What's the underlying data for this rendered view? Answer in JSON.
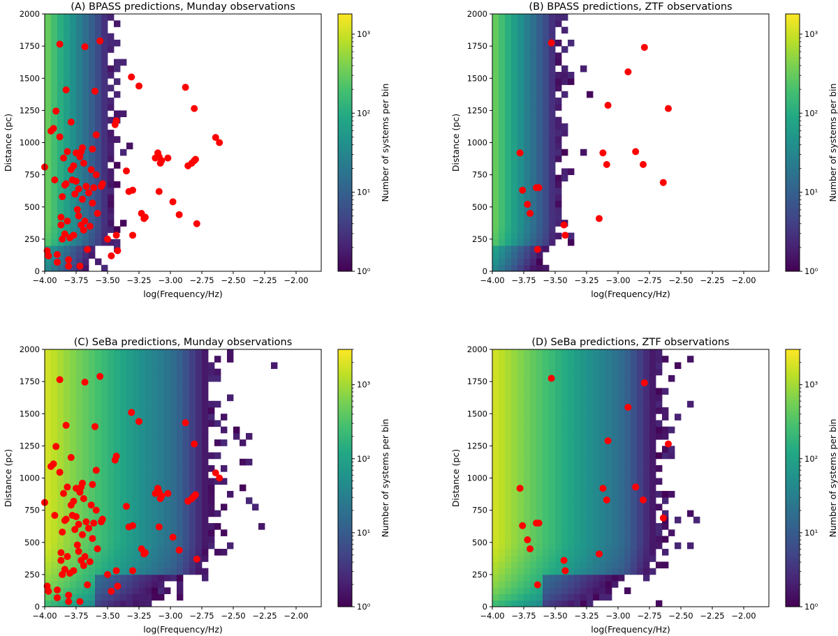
{
  "figure": {
    "colorbar_label": "Number of systems per bin",
    "xlabel": "log(Frequency/Hz)",
    "ylabel": "Distance (pc)"
  },
  "colors": {
    "observed_marker": "#ff0000",
    "viridis": [
      "#440154",
      "#482475",
      "#414487",
      "#355f8d",
      "#2a788e",
      "#21918c",
      "#22a884",
      "#44bf70",
      "#7ad151",
      "#bddf26",
      "#fde725"
    ]
  },
  "chart_data": [
    {
      "type": "heatmap",
      "title": "(A) BPASS predictions, Munday observations",
      "xlabel": "log(Frequency/Hz)",
      "ylabel": "Distance (pc)",
      "xlim": [
        -4.0,
        -1.8
      ],
      "ylim": [
        0,
        2000
      ],
      "xticks": [
        "-4.00",
        "-3.75",
        "-3.50",
        "-3.25",
        "-3.00",
        "-2.75",
        "-2.50",
        "-2.25",
        "-2.00"
      ],
      "yticks": [
        "0",
        "250",
        "500",
        "750",
        "1000",
        "1250",
        "1500",
        "1750",
        "2000"
      ],
      "colorbar": {
        "label": "Number of systems per bin",
        "scale": "log",
        "range": [
          1,
          1800
        ],
        "ticks": [
          "10⁰",
          "10¹",
          "10²",
          "10³"
        ]
      },
      "population_model": "BPASS",
      "observations": "Munday",
      "points": [
        [
          -4.0,
          810
        ],
        [
          -3.98,
          160
        ],
        [
          -3.97,
          120
        ],
        [
          -3.95,
          1090
        ],
        [
          -3.93,
          1110
        ],
        [
          -3.92,
          710
        ],
        [
          -3.91,
          1245
        ],
        [
          -3.9,
          130
        ],
        [
          -3.9,
          70
        ],
        [
          -3.88,
          1765
        ],
        [
          -3.88,
          1045
        ],
        [
          -3.87,
          420
        ],
        [
          -3.87,
          360
        ],
        [
          -3.86,
          580
        ],
        [
          -3.86,
          250
        ],
        [
          -3.85,
          880
        ],
        [
          -3.84,
          670
        ],
        [
          -3.84,
          290
        ],
        [
          -3.83,
          1410
        ],
        [
          -3.83,
          680
        ],
        [
          -3.82,
          930
        ],
        [
          -3.82,
          390
        ],
        [
          -3.81,
          90
        ],
        [
          -3.81,
          40
        ],
        [
          -3.8,
          260
        ],
        [
          -3.79,
          1160
        ],
        [
          -3.79,
          790
        ],
        [
          -3.78,
          710
        ],
        [
          -3.77,
          820
        ],
        [
          -3.77,
          280
        ],
        [
          -3.76,
          600
        ],
        [
          -3.75,
          920
        ],
        [
          -3.75,
          700
        ],
        [
          -3.74,
          480
        ],
        [
          -3.73,
          640
        ],
        [
          -3.73,
          430
        ],
        [
          -3.72,
          40
        ],
        [
          -3.72,
          890
        ],
        [
          -3.71,
          930
        ],
        [
          -3.71,
          360
        ],
        [
          -3.7,
          960
        ],
        [
          -3.7,
          560
        ],
        [
          -3.69,
          840
        ],
        [
          -3.69,
          320
        ],
        [
          -3.68,
          1745
        ],
        [
          -3.68,
          390
        ],
        [
          -3.67,
          660
        ],
        [
          -3.66,
          170
        ],
        [
          -3.65,
          610
        ],
        [
          -3.64,
          350
        ],
        [
          -3.63,
          790
        ],
        [
          -3.62,
          950
        ],
        [
          -3.62,
          530
        ],
        [
          -3.61,
          650
        ],
        [
          -3.6,
          1400
        ],
        [
          -3.59,
          750
        ],
        [
          -3.59,
          1060
        ],
        [
          -3.58,
          450
        ],
        [
          -3.56,
          1790
        ],
        [
          -3.55,
          660
        ],
        [
          -3.54,
          680
        ],
        [
          -3.5,
          250
        ],
        [
          -3.47,
          120
        ],
        [
          -3.44,
          1140
        ],
        [
          -3.43,
          1170
        ],
        [
          -3.43,
          280
        ],
        [
          -3.42,
          160
        ],
        [
          -3.35,
          780
        ],
        [
          -3.33,
          620
        ],
        [
          -3.31,
          1510
        ],
        [
          -3.3,
          280
        ],
        [
          -3.3,
          630
        ],
        [
          -3.25,
          1440
        ],
        [
          -3.23,
          450
        ],
        [
          -3.21,
          410
        ],
        [
          -3.2,
          420
        ],
        [
          -3.12,
          880
        ],
        [
          -3.1,
          920
        ],
        [
          -3.09,
          890
        ],
        [
          -3.09,
          620
        ],
        [
          -3.08,
          840
        ],
        [
          -3.07,
          860
        ],
        [
          -3.02,
          880
        ],
        [
          -2.98,
          540
        ],
        [
          -2.93,
          440
        ],
        [
          -2.88,
          1430
        ],
        [
          -2.86,
          820
        ],
        [
          -2.83,
          840
        ],
        [
          -2.81,
          1265
        ],
        [
          -2.81,
          860
        ],
        [
          -2.8,
          870
        ],
        [
          -2.79,
          370
        ],
        [
          -2.64,
          1040
        ],
        [
          -2.61,
          1000
        ]
      ]
    },
    {
      "type": "heatmap",
      "title": "(B) BPASS predictions, ZTF observations",
      "xlabel": "log(Frequency/Hz)",
      "ylabel": "Distance (pc)",
      "xlim": [
        -4.0,
        -1.8
      ],
      "ylim": [
        0,
        2000
      ],
      "xticks": [
        "-4.00",
        "-3.75",
        "-3.50",
        "-3.25",
        "-3.00",
        "-2.75",
        "-2.50",
        "-2.25",
        "-2.00"
      ],
      "yticks": [
        "0",
        "250",
        "500",
        "750",
        "1000",
        "1250",
        "1500",
        "1750",
        "2000"
      ],
      "colorbar": {
        "label": "Number of systems per bin",
        "scale": "log",
        "range": [
          1,
          1800
        ],
        "ticks": [
          "10⁰",
          "10¹",
          "10²",
          "10³"
        ]
      },
      "population_model": "BPASS",
      "observations": "ZTF",
      "points": [
        [
          -3.78,
          920
        ],
        [
          -3.76,
          630
        ],
        [
          -3.72,
          520
        ],
        [
          -3.7,
          450
        ],
        [
          -3.65,
          650
        ],
        [
          -3.63,
          650
        ],
        [
          -3.64,
          170
        ],
        [
          -3.53,
          1775
        ],
        [
          -3.43,
          360
        ],
        [
          -3.42,
          280
        ],
        [
          -3.15,
          410
        ],
        [
          -3.12,
          920
        ],
        [
          -3.09,
          830
        ],
        [
          -3.08,
          1290
        ],
        [
          -2.92,
          1550
        ],
        [
          -2.86,
          930
        ],
        [
          -2.8,
          830
        ],
        [
          -2.79,
          1740
        ],
        [
          -2.64,
          690
        ],
        [
          -2.6,
          1265
        ]
      ]
    },
    {
      "type": "heatmap",
      "title": "(C) SeBa predictions, Munday observations",
      "xlabel": "log(Frequency/Hz)",
      "ylabel": "Distance (pc)",
      "xlim": [
        -4.0,
        -1.8
      ],
      "ylim": [
        0,
        2000
      ],
      "xticks": [
        "-4.00",
        "-3.75",
        "-3.50",
        "-3.25",
        "-3.00",
        "-2.75",
        "-2.50",
        "-2.25",
        "-2.00"
      ],
      "yticks": [
        "0",
        "250",
        "500",
        "750",
        "1000",
        "1250",
        "1500",
        "1750",
        "2000"
      ],
      "colorbar": {
        "label": "Number of systems per bin",
        "scale": "log",
        "range": [
          1,
          3000
        ],
        "ticks": [
          "10⁰",
          "10¹",
          "10²",
          "10³"
        ]
      },
      "population_model": "SeBa",
      "observations": "Munday",
      "points": [
        [
          -4.0,
          810
        ],
        [
          -3.98,
          160
        ],
        [
          -3.97,
          120
        ],
        [
          -3.95,
          1090
        ],
        [
          -3.93,
          1110
        ],
        [
          -3.92,
          710
        ],
        [
          -3.91,
          1245
        ],
        [
          -3.9,
          130
        ],
        [
          -3.9,
          70
        ],
        [
          -3.88,
          1765
        ],
        [
          -3.88,
          1045
        ],
        [
          -3.87,
          420
        ],
        [
          -3.87,
          360
        ],
        [
          -3.86,
          580
        ],
        [
          -3.86,
          250
        ],
        [
          -3.85,
          880
        ],
        [
          -3.84,
          670
        ],
        [
          -3.84,
          290
        ],
        [
          -3.83,
          1410
        ],
        [
          -3.83,
          680
        ],
        [
          -3.82,
          930
        ],
        [
          -3.82,
          390
        ],
        [
          -3.81,
          90
        ],
        [
          -3.81,
          40
        ],
        [
          -3.8,
          260
        ],
        [
          -3.79,
          1160
        ],
        [
          -3.79,
          790
        ],
        [
          -3.78,
          710
        ],
        [
          -3.77,
          820
        ],
        [
          -3.77,
          280
        ],
        [
          -3.76,
          600
        ],
        [
          -3.75,
          920
        ],
        [
          -3.75,
          700
        ],
        [
          -3.74,
          480
        ],
        [
          -3.73,
          640
        ],
        [
          -3.73,
          430
        ],
        [
          -3.72,
          40
        ],
        [
          -3.72,
          890
        ],
        [
          -3.71,
          930
        ],
        [
          -3.71,
          360
        ],
        [
          -3.7,
          960
        ],
        [
          -3.7,
          560
        ],
        [
          -3.69,
          840
        ],
        [
          -3.69,
          320
        ],
        [
          -3.68,
          1745
        ],
        [
          -3.68,
          390
        ],
        [
          -3.67,
          660
        ],
        [
          -3.66,
          170
        ],
        [
          -3.65,
          610
        ],
        [
          -3.64,
          350
        ],
        [
          -3.63,
          790
        ],
        [
          -3.62,
          950
        ],
        [
          -3.62,
          530
        ],
        [
          -3.61,
          650
        ],
        [
          -3.6,
          1400
        ],
        [
          -3.59,
          750
        ],
        [
          -3.59,
          1060
        ],
        [
          -3.58,
          450
        ],
        [
          -3.56,
          1790
        ],
        [
          -3.55,
          660
        ],
        [
          -3.54,
          680
        ],
        [
          -3.5,
          250
        ],
        [
          -3.47,
          120
        ],
        [
          -3.44,
          1140
        ],
        [
          -3.43,
          1170
        ],
        [
          -3.43,
          280
        ],
        [
          -3.42,
          160
        ],
        [
          -3.35,
          780
        ],
        [
          -3.33,
          620
        ],
        [
          -3.31,
          1510
        ],
        [
          -3.3,
          280
        ],
        [
          -3.3,
          630
        ],
        [
          -3.25,
          1440
        ],
        [
          -3.23,
          450
        ],
        [
          -3.21,
          410
        ],
        [
          -3.2,
          420
        ],
        [
          -3.12,
          880
        ],
        [
          -3.1,
          920
        ],
        [
          -3.09,
          890
        ],
        [
          -3.09,
          620
        ],
        [
          -3.08,
          840
        ],
        [
          -3.07,
          860
        ],
        [
          -3.02,
          880
        ],
        [
          -2.98,
          540
        ],
        [
          -2.93,
          440
        ],
        [
          -2.88,
          1430
        ],
        [
          -2.86,
          820
        ],
        [
          -2.83,
          840
        ],
        [
          -2.81,
          1265
        ],
        [
          -2.81,
          860
        ],
        [
          -2.8,
          870
        ],
        [
          -2.79,
          370
        ],
        [
          -2.64,
          1040
        ],
        [
          -2.61,
          1000
        ]
      ]
    },
    {
      "type": "heatmap",
      "title": "(D) SeBa predictions, ZTF observations",
      "xlabel": "log(Frequency/Hz)",
      "ylabel": "Distance (pc)",
      "xlim": [
        -4.0,
        -1.8
      ],
      "ylim": [
        0,
        2000
      ],
      "xticks": [
        "-4.00",
        "-3.75",
        "-3.50",
        "-3.25",
        "-3.00",
        "-2.75",
        "-2.50",
        "-2.25",
        "-2.00"
      ],
      "yticks": [
        "0",
        "250",
        "500",
        "750",
        "1000",
        "1250",
        "1500",
        "1750",
        "2000"
      ],
      "colorbar": {
        "label": "Number of systems per bin",
        "scale": "log",
        "range": [
          1,
          3000
        ],
        "ticks": [
          "10⁰",
          "10¹",
          "10²",
          "10³"
        ]
      },
      "population_model": "SeBa",
      "observations": "ZTF",
      "points": [
        [
          -3.78,
          920
        ],
        [
          -3.76,
          630
        ],
        [
          -3.72,
          520
        ],
        [
          -3.7,
          450
        ],
        [
          -3.65,
          650
        ],
        [
          -3.63,
          650
        ],
        [
          -3.64,
          170
        ],
        [
          -3.53,
          1775
        ],
        [
          -3.43,
          360
        ],
        [
          -3.42,
          280
        ],
        [
          -3.15,
          410
        ],
        [
          -3.12,
          920
        ],
        [
          -3.09,
          830
        ],
        [
          -3.08,
          1290
        ],
        [
          -2.92,
          1550
        ],
        [
          -2.86,
          930
        ],
        [
          -2.8,
          830
        ],
        [
          -2.79,
          1740
        ],
        [
          -2.64,
          690
        ],
        [
          -2.6,
          1265
        ]
      ]
    }
  ]
}
